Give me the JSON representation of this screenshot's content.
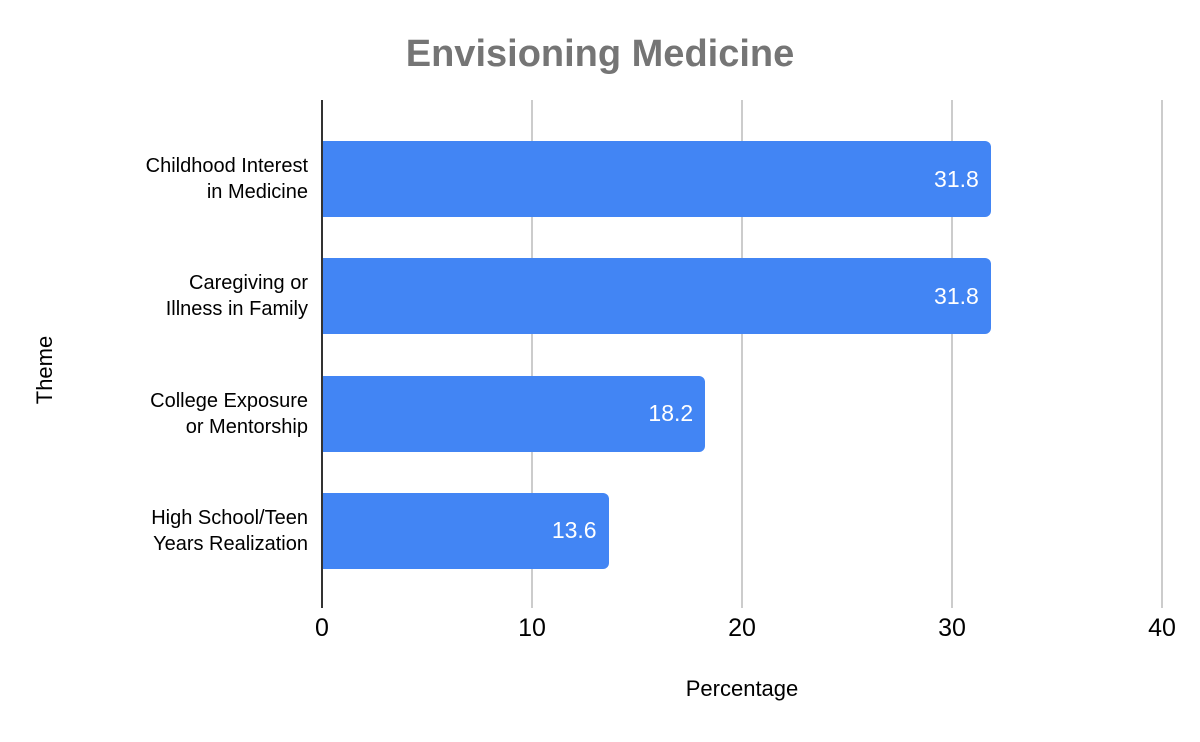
{
  "chart_data": {
    "type": "bar",
    "orientation": "horizontal",
    "title": "Envisioning Medicine",
    "xlabel": "Percentage",
    "ylabel": "Theme",
    "categories": [
      "Childhood Interest in Medicine",
      "Caregiving or Illness in Family",
      "College Exposure or Mentorship",
      "High School/Teen Years Realization"
    ],
    "category_lines": [
      [
        "Childhood Interest",
        "in Medicine"
      ],
      [
        "Caregiving or",
        "Illness in Family"
      ],
      [
        "College Exposure",
        "or Mentorship"
      ],
      [
        "High School/Teen",
        "Years Realization"
      ]
    ],
    "values": [
      31.8,
      31.8,
      18.2,
      13.6
    ],
    "value_labels": [
      "31.8",
      "31.8",
      "18.2",
      "13.6"
    ],
    "x_ticks": [
      "0",
      "10",
      "20",
      "30",
      "40"
    ],
    "xlim": [
      0,
      40
    ],
    "grid": true,
    "legend": "none",
    "colors": {
      "bar": "#4285F4",
      "title": "#757575",
      "gridline": "#cccccc",
      "axis_line": "#333333",
      "tick_label": "#000000",
      "value_label": "#ffffff"
    }
  }
}
